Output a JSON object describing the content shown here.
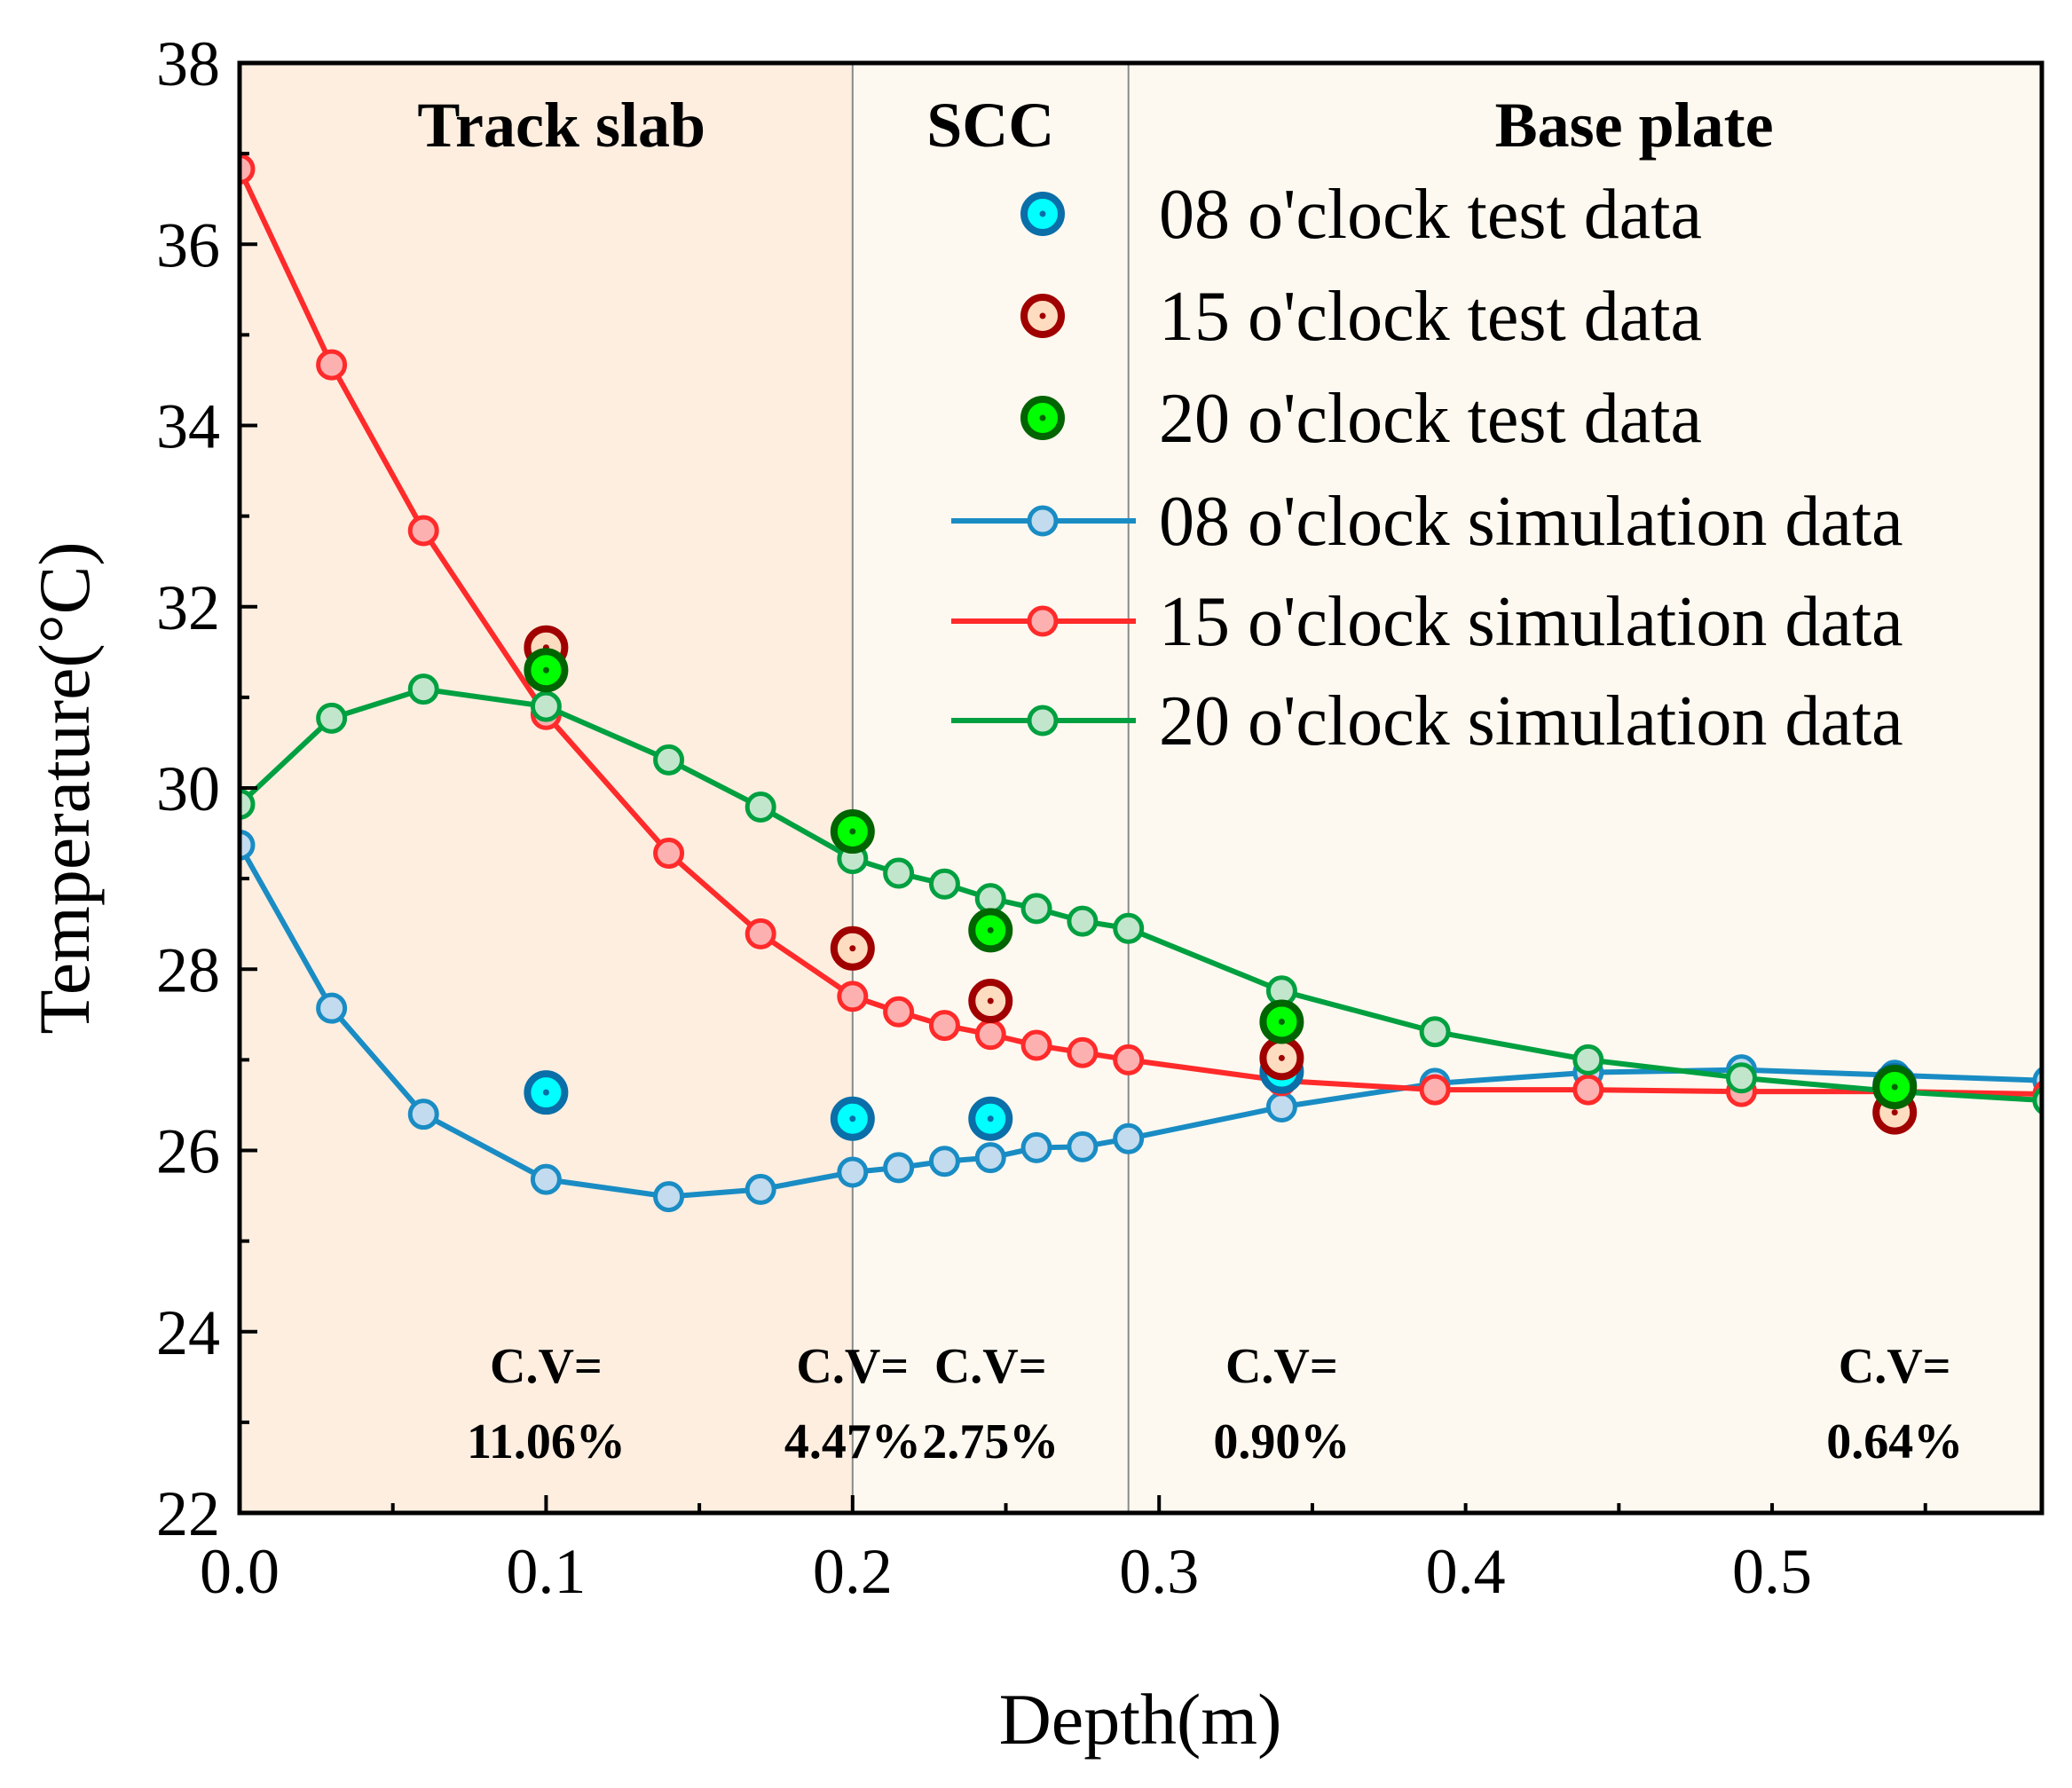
{
  "chart_data": {
    "type": "line",
    "xlabel": "Depth(m)",
    "ylabel": "Temperature(°C)",
    "xlim": [
      0,
      0.588
    ],
    "ylim": [
      22,
      38
    ],
    "xticks": [
      "0.0",
      "0.1",
      "0.2",
      "0.3",
      "0.4",
      "0.5"
    ],
    "xtick_values": [
      0,
      0.1,
      0.2,
      0.3,
      0.4,
      0.5
    ],
    "yticks": [
      "22",
      "24",
      "26",
      "28",
      "30",
      "32",
      "34",
      "36",
      "38"
    ],
    "ytick_values": [
      22,
      24,
      26,
      28,
      30,
      32,
      34,
      36,
      38
    ],
    "grid": false,
    "legend_position": "top-right",
    "regions": [
      {
        "label": "Track slab",
        "from": 0,
        "to": 0.2,
        "color": "#fdeee0"
      },
      {
        "label": "SCC",
        "from": 0.2,
        "to": 0.29,
        "color": "#fef9f0"
      },
      {
        "label": "Base plate",
        "from": 0.29,
        "to": 0.588,
        "color": "#fef9f0"
      }
    ],
    "sim_x": [
      0,
      0.03,
      0.06,
      0.1,
      0.14,
      0.17,
      0.2,
      0.215,
      0.23,
      0.245,
      0.26,
      0.275,
      0.29,
      0.34,
      0.39,
      0.44,
      0.49,
      0.54,
      0.59
    ],
    "test_x": [
      0.1,
      0.2,
      0.245,
      0.34,
      0.54
    ],
    "test_series": [
      {
        "name": "08 o'clock test data",
        "values": [
          26.64,
          26.35,
          26.35,
          26.87,
          26.72
        ],
        "fill": "#00ffff",
        "stroke": "#0a6ea8"
      },
      {
        "name": "15 o'clock test data",
        "values": [
          31.55,
          28.23,
          27.65,
          27.02,
          26.42
        ],
        "fill": "#fddcc0",
        "stroke": "#a00000"
      },
      {
        "name": "20 o'clock test data",
        "values": [
          31.3,
          29.52,
          28.43,
          27.42,
          26.7
        ],
        "fill": "#00ff00",
        "stroke": "#006400"
      }
    ],
    "sim_series": [
      {
        "name": "08 o'clock simulation data",
        "values": [
          29.37,
          27.57,
          26.4,
          25.68,
          25.49,
          25.57,
          25.76,
          25.81,
          25.88,
          25.92,
          26.03,
          26.04,
          26.13,
          26.48,
          26.74,
          26.86,
          26.89,
          26.83,
          26.77
        ],
        "line": "#1a8cc4",
        "fill": "#c3dbee"
      },
      {
        "name": "15 o'clock simulation data",
        "values": [
          36.83,
          34.67,
          32.84,
          30.81,
          29.28,
          28.39,
          27.7,
          27.53,
          27.38,
          27.28,
          27.16,
          27.08,
          27.0,
          26.77,
          26.67,
          26.67,
          26.65,
          26.65,
          26.62
        ],
        "line": "#ff2a2a",
        "fill": "#fdb0b0"
      },
      {
        "name": "20 o'clock simulation data",
        "values": [
          29.82,
          30.77,
          31.09,
          30.9,
          30.31,
          29.79,
          29.22,
          29.06,
          28.94,
          28.78,
          28.67,
          28.53,
          28.45,
          27.76,
          27.31,
          27.0,
          26.8,
          26.65,
          26.55
        ],
        "line": "#00a040",
        "fill": "#c2e6cc"
      }
    ],
    "annotations": [
      {
        "x": 0.1,
        "title": "C.V=",
        "value": "11.06%"
      },
      {
        "x": 0.2,
        "title": "C.V=",
        "value": "4.47%"
      },
      {
        "x": 0.245,
        "title": "C.V=",
        "value": "2.75%"
      },
      {
        "x": 0.34,
        "title": "C.V=",
        "value": "0.90%"
      },
      {
        "x": 0.54,
        "title": "C.V=",
        "value": "0.64%"
      }
    ]
  }
}
